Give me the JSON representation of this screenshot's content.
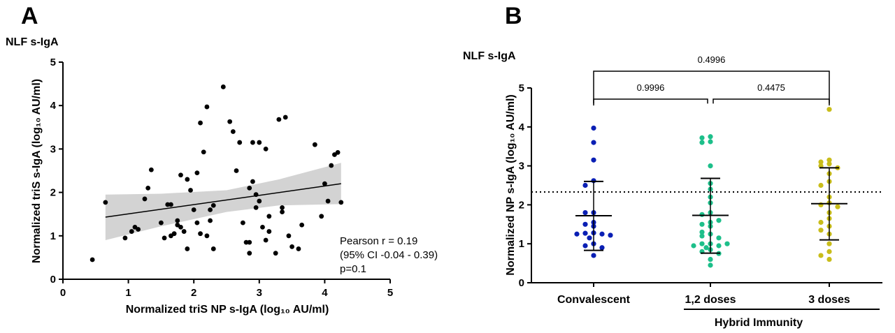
{
  "chart_data": [
    {
      "panel_label": "A",
      "title": "NLF s-IgA",
      "type": "scatter",
      "xlabel": "Normalized triS NP s-IgA (log₁₀ AU/ml)",
      "ylabel": "Normalized triS s-IgA (log₁₀ AU/ml)",
      "xlim": [
        0,
        5
      ],
      "ylim": [
        0,
        5
      ],
      "xticks": [
        "0",
        "1",
        "2",
        "3",
        "4",
        "5"
      ],
      "yticks": [
        "0",
        "1",
        "2",
        "3",
        "4",
        "5"
      ],
      "grid": false,
      "annotation": [
        "Pearson r = 0.19",
        "(95% CI -0.04 - 0.39)",
        "p=0.1"
      ],
      "regression": {
        "x": [
          0.65,
          4.25
        ],
        "y": [
          1.43,
          2.2
        ]
      },
      "confidence_band": {
        "x": [
          0.65,
          1.5,
          2.5,
          3.3,
          4.25
        ],
        "lower": [
          0.9,
          1.22,
          1.55,
          1.7,
          1.73
        ],
        "upper": [
          1.95,
          1.97,
          2.05,
          2.3,
          2.68
        ]
      },
      "points": [
        [
          0.65,
          1.77
        ],
        [
          0.95,
          0.95
        ],
        [
          1.05,
          1.1
        ],
        [
          1.1,
          1.2
        ],
        [
          1.15,
          1.15
        ],
        [
          1.25,
          1.85
        ],
        [
          1.3,
          2.1
        ],
        [
          1.35,
          2.52
        ],
        [
          1.5,
          1.3
        ],
        [
          1.55,
          0.95
        ],
        [
          1.6,
          1.72
        ],
        [
          1.65,
          1.0
        ],
        [
          1.65,
          1.72
        ],
        [
          1.7,
          1.05
        ],
        [
          1.75,
          1.35
        ],
        [
          1.75,
          1.25
        ],
        [
          1.8,
          2.4
        ],
        [
          1.8,
          1.2
        ],
        [
          1.85,
          1.1
        ],
        [
          1.9,
          2.3
        ],
        [
          1.9,
          0.7
        ],
        [
          1.95,
          2.05
        ],
        [
          2.0,
          1.6
        ],
        [
          2.05,
          1.3
        ],
        [
          2.05,
          2.45
        ],
        [
          2.1,
          1.05
        ],
        [
          2.1,
          3.6
        ],
        [
          2.15,
          2.93
        ],
        [
          2.2,
          3.97
        ],
        [
          2.2,
          1.0
        ],
        [
          2.25,
          1.35
        ],
        [
          2.25,
          1.6
        ],
        [
          2.3,
          1.7
        ],
        [
          2.3,
          0.7
        ],
        [
          2.45,
          4.43
        ],
        [
          2.55,
          3.63
        ],
        [
          2.6,
          3.4
        ],
        [
          2.65,
          2.5
        ],
        [
          2.7,
          3.15
        ],
        [
          2.75,
          1.3
        ],
        [
          2.8,
          0.85
        ],
        [
          2.85,
          0.6
        ],
        [
          2.85,
          0.85
        ],
        [
          2.85,
          2.1
        ],
        [
          2.9,
          3.15
        ],
        [
          2.9,
          2.25
        ],
        [
          2.95,
          1.65
        ],
        [
          2.95,
          1.95
        ],
        [
          3.0,
          1.8
        ],
        [
          3.0,
          3.15
        ],
        [
          3.05,
          1.2
        ],
        [
          3.1,
          0.9
        ],
        [
          3.1,
          3.0
        ],
        [
          3.15,
          1.1
        ],
        [
          3.15,
          1.45
        ],
        [
          3.25,
          0.6
        ],
        [
          3.3,
          3.68
        ],
        [
          3.35,
          1.55
        ],
        [
          3.35,
          1.65
        ],
        [
          3.4,
          3.73
        ],
        [
          3.45,
          1.0
        ],
        [
          3.5,
          0.75
        ],
        [
          3.6,
          0.7
        ],
        [
          3.65,
          1.25
        ],
        [
          3.85,
          3.1
        ],
        [
          4.0,
          2.2
        ],
        [
          4.05,
          1.8
        ],
        [
          4.1,
          2.62
        ],
        [
          4.15,
          2.87
        ],
        [
          4.2,
          2.92
        ],
        [
          4.25,
          1.77
        ],
        [
          3.95,
          1.45
        ],
        [
          0.45,
          0.45
        ]
      ]
    },
    {
      "panel_label": "B",
      "title": "NLF s-IgA",
      "type": "scatter",
      "xlabel": "",
      "ylabel": "Normalized NP s-IgA (log₁₀ AU/ml)",
      "ylim": [
        0,
        5
      ],
      "yticks": [
        "0",
        "1",
        "2",
        "3",
        "4",
        "5"
      ],
      "categories": [
        "Convalescent",
        "1,2 doses",
        "3 doses"
      ],
      "group_label": "Hybrid Immunity",
      "threshold": 2.33,
      "colors": [
        "#0a1fb4",
        "#1dbf8a",
        "#c9bd1a"
      ],
      "comparisons": [
        {
          "groups": [
            0,
            2
          ],
          "p": "0.4996"
        },
        {
          "groups": [
            0,
            1
          ],
          "p": "0.9996"
        },
        {
          "groups": [
            1,
            2
          ],
          "p": "0.4475"
        }
      ],
      "summary": [
        {
          "mean": 1.72,
          "lower": 0.83,
          "upper": 2.6
        },
        {
          "mean": 1.73,
          "lower": 0.76,
          "upper": 2.68
        },
        {
          "mean": 2.03,
          "lower": 1.1,
          "upper": 2.95
        }
      ],
      "series": [
        {
          "values": [
            3.97,
            3.6,
            3.15,
            2.62,
            2.5,
            1.8,
            1.8,
            1.55,
            1.5,
            1.45,
            1.28,
            1.27,
            1.25,
            1.25,
            1.22,
            1.15,
            1.0,
            0.95,
            0.9,
            0.7
          ]
        },
        {
          "values": [
            3.75,
            3.72,
            3.62,
            3.6,
            3.0,
            2.55,
            2.4,
            2.05,
            1.8,
            1.75,
            1.55,
            1.5,
            1.45,
            1.3,
            1.25,
            1.2,
            1.0,
            1.0,
            0.95,
            0.95,
            0.85,
            0.8,
            0.75,
            0.6,
            0.45,
            2.2,
            1.0,
            0.9,
            1.15,
            1.6
          ]
        },
        {
          "values": [
            4.45,
            3.15,
            3.1,
            3.05,
            3.0,
            2.95,
            2.8,
            2.6,
            2.5,
            2.2,
            2.05,
            2.0,
            1.95,
            1.8,
            1.65,
            1.55,
            1.45,
            1.35,
            1.25,
            1.0,
            0.8,
            0.6,
            0.7
          ]
        }
      ]
    }
  ]
}
